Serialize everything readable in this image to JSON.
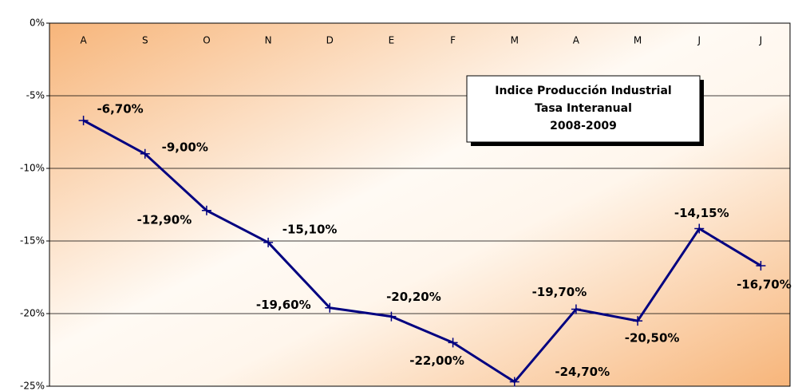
{
  "chart_data": {
    "type": "line",
    "title": "Indice Producción Industrial",
    "subtitle": "Tasa Interanual",
    "period": "2008-2009",
    "categories": [
      "A",
      "S",
      "O",
      "N",
      "D",
      "E",
      "F",
      "M",
      "A",
      "M",
      "J",
      "J"
    ],
    "series": [
      {
        "name": "Indice Producción Industrial",
        "color": "#000080",
        "values": [
          -6.7,
          -9.0,
          -12.9,
          -15.1,
          -19.6,
          -20.2,
          -22.0,
          -24.7,
          -19.7,
          -20.5,
          -14.15,
          -16.7
        ],
        "value_labels": [
          "-6,70%",
          "-9,00%",
          "-12,90%",
          "-15,10%",
          "-19,60%",
          "-20,20%",
          "-22,00%",
          "-24,70%",
          "-19,70%",
          "-20,50%",
          "-14,15%",
          "-16,70%"
        ]
      }
    ],
    "ylim": [
      -25,
      0
    ],
    "yticks": [
      {
        "value": 0,
        "label": "0%"
      },
      {
        "value": -5,
        "label": "-5%"
      },
      {
        "value": -10,
        "label": "-10%"
      },
      {
        "value": -15,
        "label": "-15%"
      },
      {
        "value": -20,
        "label": "-20%"
      },
      {
        "value": -25,
        "label": "-25%"
      }
    ],
    "grid": true,
    "legend": false
  }
}
